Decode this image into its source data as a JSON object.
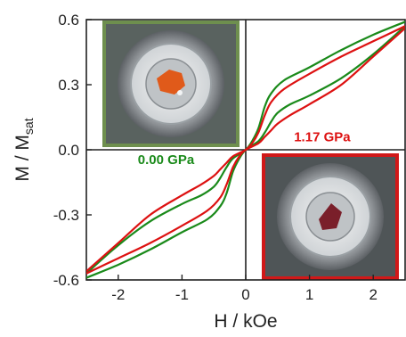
{
  "chart_data": {
    "type": "line",
    "title": "",
    "xlabel": "H  /  kOe",
    "ylabel_main": "M / M",
    "ylabel_sub": "sat",
    "xlim": [
      -2.5,
      2.5
    ],
    "ylim": [
      -0.6,
      0.6
    ],
    "x_ticks": [
      -2,
      -1,
      0,
      1,
      2
    ],
    "x_tick_labels": [
      "-2",
      "-1",
      "0",
      "1",
      "2"
    ],
    "y_ticks": [
      -0.6,
      -0.3,
      0.0,
      0.3,
      0.6
    ],
    "y_tick_labels": [
      "-0.6",
      "-0.3",
      "0.0",
      "0.3",
      "0.6"
    ],
    "grid": false,
    "zero_lines": true,
    "series": [
      {
        "name": "0.00 GPa",
        "color": "#1a8a1a",
        "branches": [
          {
            "x": [
              2.5,
              2.0,
              1.5,
              1.0,
              0.6,
              0.4,
              0.3,
              0.2,
              0.1,
              0.0,
              -0.2,
              -0.3,
              -0.4,
              -0.5,
              -0.7,
              -1.0,
              -1.5,
              -2.0,
              -2.5
            ],
            "y": [
              0.59,
              0.53,
              0.46,
              0.38,
              0.32,
              0.26,
              0.2,
              0.1,
              0.04,
              0.0,
              -0.04,
              -0.08,
              -0.13,
              -0.17,
              -0.21,
              -0.25,
              -0.33,
              -0.44,
              -0.57
            ]
          },
          {
            "x": [
              -2.5,
              -2.0,
              -1.5,
              -1.0,
              -0.6,
              -0.4,
              -0.3,
              -0.2,
              -0.1,
              0.0,
              0.2,
              0.3,
              0.4,
              0.5,
              0.7,
              1.0,
              1.5,
              2.0,
              2.5
            ],
            "y": [
              -0.59,
              -0.53,
              -0.46,
              -0.38,
              -0.32,
              -0.26,
              -0.2,
              -0.1,
              -0.04,
              0.0,
              0.04,
              0.08,
              0.13,
              0.17,
              0.21,
              0.25,
              0.33,
              0.44,
              0.57
            ]
          }
        ]
      },
      {
        "name": "1.17 GPa",
        "color": "#dd1111",
        "branches": [
          {
            "x": [
              2.5,
              2.0,
              1.5,
              1.0,
              0.6,
              0.4,
              0.3,
              0.2,
              0.1,
              0.0,
              -0.2,
              -0.3,
              -0.4,
              -0.5,
              -0.7,
              -1.0,
              -1.5,
              -2.0,
              -2.5
            ],
            "y": [
              0.57,
              0.5,
              0.43,
              0.35,
              0.28,
              0.22,
              0.16,
              0.08,
              0.03,
              0.0,
              -0.03,
              -0.06,
              -0.09,
              -0.12,
              -0.16,
              -0.21,
              -0.3,
              -0.43,
              -0.56
            ]
          },
          {
            "x": [
              -2.5,
              -2.0,
              -1.5,
              -1.0,
              -0.6,
              -0.4,
              -0.3,
              -0.2,
              -0.1,
              0.0,
              0.2,
              0.3,
              0.4,
              0.5,
              0.7,
              1.0,
              1.5,
              2.0,
              2.5
            ],
            "y": [
              -0.57,
              -0.5,
              -0.43,
              -0.35,
              -0.28,
              -0.22,
              -0.16,
              -0.08,
              -0.03,
              0.0,
              0.03,
              0.06,
              0.09,
              0.12,
              0.16,
              0.21,
              0.3,
              0.43,
              0.56
            ]
          }
        ]
      }
    ],
    "annotations": [
      {
        "text": "0.00 GPa",
        "color": "#1a8a1a",
        "x": -1.25,
        "y": -0.065
      },
      {
        "text": "1.17 GPa",
        "color": "#dd1111",
        "x": 1.2,
        "y": 0.04
      }
    ],
    "insets": [
      {
        "name": "inset-0-gpa",
        "frame_color": "#6e8f4e",
        "sample_color": "#e05a1a"
      },
      {
        "name": "inset-1-17-gpa",
        "frame_color": "#d11818",
        "sample_color": "#7a1f2a"
      }
    ]
  }
}
